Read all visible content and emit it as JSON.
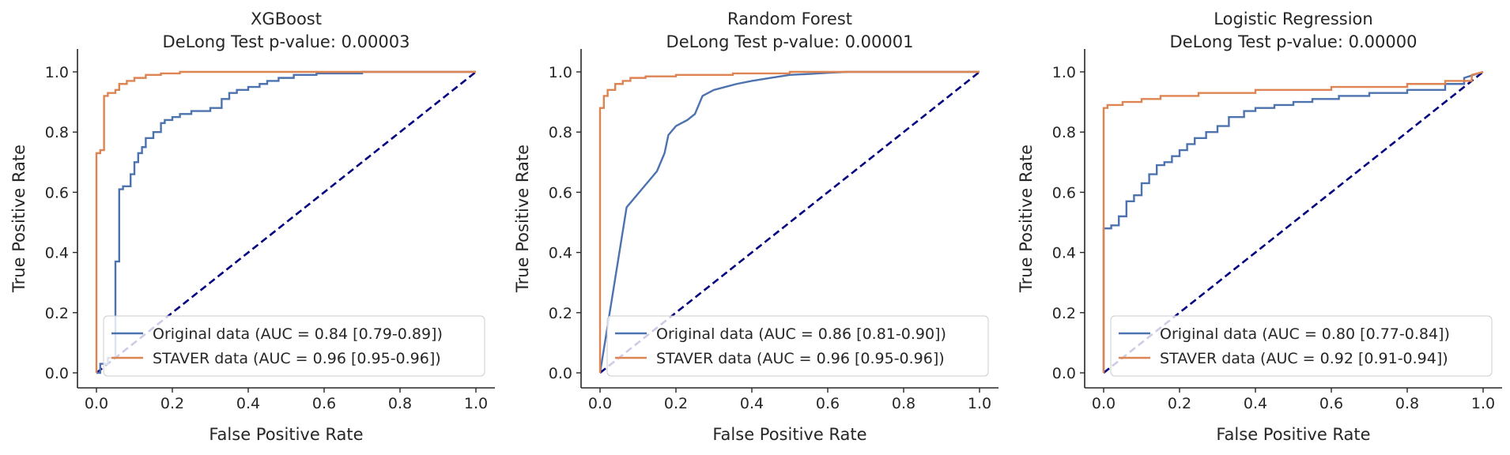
{
  "chart_data": [
    {
      "type": "line",
      "title": "XGBoost",
      "subtitle": "DeLong Test p-value: 0.00003",
      "xlabel": "False Positive Rate",
      "ylabel": "True Positive Rate",
      "xlim": [
        0,
        1
      ],
      "ylim": [
        0,
        1
      ],
      "xticks": [
        "0.0",
        "0.2",
        "0.4",
        "0.6",
        "0.8",
        "1.0"
      ],
      "yticks": [
        "0.0",
        "0.2",
        "0.4",
        "0.6",
        "0.8",
        "1.0"
      ],
      "legend_position": "lower-right",
      "series": [
        {
          "name": "Original data (AUC = 0.84 [0.79-0.89])",
          "color": "#4c72b0",
          "x": [
            0,
            0.01,
            0.01,
            0.03,
            0.03,
            0.05,
            0.05,
            0.06,
            0.06,
            0.07,
            0.07,
            0.09,
            0.09,
            0.1,
            0.1,
            0.11,
            0.11,
            0.12,
            0.12,
            0.13,
            0.13,
            0.15,
            0.15,
            0.17,
            0.17,
            0.18,
            0.18,
            0.2,
            0.2,
            0.22,
            0.22,
            0.25,
            0.25,
            0.3,
            0.3,
            0.33,
            0.33,
            0.35,
            0.35,
            0.37,
            0.37,
            0.4,
            0.4,
            0.43,
            0.43,
            0.45,
            0.45,
            0.48,
            0.48,
            0.52,
            0.52,
            0.58,
            0.58,
            0.7,
            0.7,
            1.0
          ],
          "y": [
            0,
            0,
            0.03,
            0.03,
            0.05,
            0.05,
            0.37,
            0.37,
            0.61,
            0.61,
            0.62,
            0.62,
            0.66,
            0.66,
            0.7,
            0.7,
            0.73,
            0.73,
            0.75,
            0.75,
            0.78,
            0.78,
            0.8,
            0.8,
            0.83,
            0.83,
            0.84,
            0.84,
            0.85,
            0.85,
            0.86,
            0.86,
            0.87,
            0.87,
            0.88,
            0.88,
            0.91,
            0.91,
            0.93,
            0.93,
            0.94,
            0.94,
            0.95,
            0.95,
            0.96,
            0.96,
            0.97,
            0.97,
            0.98,
            0.98,
            0.99,
            0.99,
            0.995,
            0.995,
            1.0,
            1.0
          ]
        },
        {
          "name": "STAVER data (AUC = 0.96 [0.95-0.96])",
          "color": "#dd8452",
          "x": [
            0,
            0,
            0.01,
            0.01,
            0.02,
            0.02,
            0.03,
            0.03,
            0.05,
            0.05,
            0.06,
            0.06,
            0.08,
            0.08,
            0.1,
            0.1,
            0.13,
            0.13,
            0.17,
            0.17,
            0.22,
            0.22,
            0.3,
            0.3,
            1.0
          ],
          "y": [
            0,
            0.73,
            0.73,
            0.74,
            0.74,
            0.92,
            0.92,
            0.93,
            0.93,
            0.94,
            0.94,
            0.96,
            0.96,
            0.97,
            0.97,
            0.98,
            0.98,
            0.99,
            0.99,
            0.995,
            0.995,
            1.0,
            1.0,
            1.0,
            1.0
          ]
        },
        {
          "name": "",
          "color": "#000080",
          "dashed": true,
          "x": [
            0,
            1
          ],
          "y": [
            0,
            1
          ]
        }
      ]
    },
    {
      "type": "line",
      "title": "Random Forest",
      "subtitle": "DeLong Test p-value: 0.00001",
      "xlabel": "False Positive Rate",
      "ylabel": "True Positive Rate",
      "xlim": [
        0,
        1
      ],
      "ylim": [
        0,
        1
      ],
      "xticks": [
        "0.0",
        "0.2",
        "0.4",
        "0.6",
        "0.8",
        "1.0"
      ],
      "yticks": [
        "0.0",
        "0.2",
        "0.4",
        "0.6",
        "0.8",
        "1.0"
      ],
      "legend_position": "lower-right",
      "series": [
        {
          "name": "Original data (AUC = 0.86 [0.81-0.90])",
          "color": "#4c72b0",
          "x": [
            0,
            0.07,
            0.15,
            0.17,
            0.18,
            0.2,
            0.23,
            0.25,
            0.26,
            0.27,
            0.3,
            0.33,
            0.36,
            0.4,
            0.45,
            0.5,
            0.55,
            0.6,
            0.65,
            1.0
          ],
          "y": [
            0,
            0.55,
            0.67,
            0.73,
            0.79,
            0.82,
            0.84,
            0.86,
            0.89,
            0.92,
            0.94,
            0.95,
            0.96,
            0.97,
            0.98,
            0.99,
            0.993,
            0.997,
            1.0,
            1.0
          ],
          "step": false
        },
        {
          "name": "STAVER data (AUC = 0.96 [0.95-0.96])",
          "color": "#dd8452",
          "x": [
            0,
            0,
            0.01,
            0.01,
            0.02,
            0.02,
            0.04,
            0.04,
            0.06,
            0.06,
            0.08,
            0.08,
            0.12,
            0.12,
            0.2,
            0.2,
            0.35,
            0.35,
            0.5,
            0.5,
            1.0
          ],
          "y": [
            0,
            0.88,
            0.88,
            0.92,
            0.92,
            0.94,
            0.94,
            0.96,
            0.96,
            0.97,
            0.97,
            0.98,
            0.98,
            0.985,
            0.985,
            0.99,
            0.99,
            0.995,
            0.995,
            1.0,
            1.0
          ]
        },
        {
          "name": "",
          "color": "#000080",
          "dashed": true,
          "x": [
            0,
            1
          ],
          "y": [
            0,
            1
          ]
        }
      ]
    },
    {
      "type": "line",
      "title": "Logistic Regression",
      "subtitle": "DeLong Test p-value: 0.00000",
      "xlabel": "False Positive Rate",
      "ylabel": "True Positive Rate",
      "xlim": [
        0,
        1
      ],
      "ylim": [
        0,
        1
      ],
      "xticks": [
        "0.0",
        "0.2",
        "0.4",
        "0.6",
        "0.8",
        "1.0"
      ],
      "yticks": [
        "0.0",
        "0.2",
        "0.4",
        "0.6",
        "0.8",
        "1.0"
      ],
      "legend_position": "lower-right",
      "series": [
        {
          "name": "Original data (AUC = 0.80 [0.77-0.84])",
          "color": "#4c72b0",
          "x": [
            0,
            0,
            0.02,
            0.02,
            0.04,
            0.04,
            0.06,
            0.06,
            0.08,
            0.08,
            0.1,
            0.1,
            0.12,
            0.12,
            0.14,
            0.14,
            0.16,
            0.16,
            0.18,
            0.18,
            0.2,
            0.2,
            0.22,
            0.22,
            0.24,
            0.24,
            0.27,
            0.27,
            0.3,
            0.3,
            0.33,
            0.33,
            0.37,
            0.37,
            0.4,
            0.4,
            0.45,
            0.45,
            0.5,
            0.5,
            0.55,
            0.55,
            0.62,
            0.62,
            0.7,
            0.7,
            0.8,
            0.8,
            0.9,
            0.9,
            0.95,
            0.95,
            1.0
          ],
          "y": [
            0,
            0.48,
            0.48,
            0.49,
            0.49,
            0.52,
            0.52,
            0.57,
            0.57,
            0.59,
            0.59,
            0.63,
            0.63,
            0.66,
            0.66,
            0.69,
            0.69,
            0.7,
            0.7,
            0.72,
            0.72,
            0.74,
            0.74,
            0.76,
            0.76,
            0.78,
            0.78,
            0.8,
            0.8,
            0.82,
            0.82,
            0.85,
            0.85,
            0.87,
            0.87,
            0.88,
            0.88,
            0.89,
            0.89,
            0.9,
            0.9,
            0.91,
            0.91,
            0.92,
            0.92,
            0.93,
            0.93,
            0.94,
            0.94,
            0.96,
            0.96,
            0.98,
            1.0
          ]
        },
        {
          "name": "STAVER data (AUC = 0.92 [0.91-0.94])",
          "color": "#dd8452",
          "x": [
            0,
            0,
            0.01,
            0.01,
            0.05,
            0.05,
            0.1,
            0.1,
            0.15,
            0.15,
            0.25,
            0.25,
            0.4,
            0.4,
            0.6,
            0.6,
            0.8,
            0.8,
            0.9,
            0.9,
            0.97,
            0.97,
            1.0
          ],
          "y": [
            0,
            0.88,
            0.88,
            0.89,
            0.89,
            0.9,
            0.9,
            0.91,
            0.91,
            0.92,
            0.92,
            0.93,
            0.93,
            0.94,
            0.94,
            0.95,
            0.95,
            0.96,
            0.96,
            0.97,
            0.97,
            0.99,
            1.0
          ]
        },
        {
          "name": "",
          "color": "#000080",
          "dashed": true,
          "x": [
            0,
            1
          ],
          "y": [
            0,
            1
          ]
        }
      ]
    }
  ]
}
